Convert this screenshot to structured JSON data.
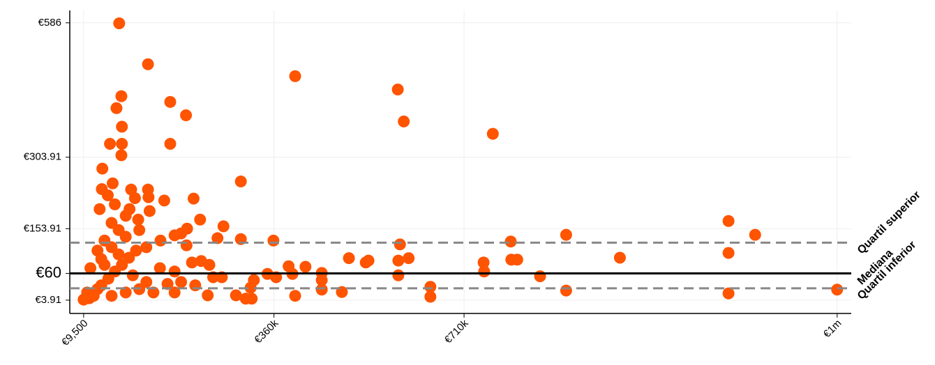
{
  "chart_data": {
    "type": "scatter",
    "color": "#ff5400",
    "grid": true,
    "xlim": [
      -16000,
      1423000
    ],
    "ylim": [
      -24,
      612
    ],
    "xticks": [
      {
        "value": 9500,
        "label": "€9,500"
      },
      {
        "value": 360000,
        "label": "€360k"
      },
      {
        "value": 710000,
        "label": "€710k"
      },
      {
        "value": 1397000,
        "label": "€1m"
      }
    ],
    "yticks": [
      {
        "value": 3.91,
        "label": "€3.91"
      },
      {
        "value": 60,
        "label": "€60"
      },
      {
        "value": 153.91,
        "label": "€153.91"
      },
      {
        "value": 303.91,
        "label": "€303.91"
      },
      {
        "value": 586,
        "label": "€586"
      }
    ],
    "reference_lines": [
      {
        "label": "Quartil superior",
        "value": 124.5,
        "style": "dashed"
      },
      {
        "label": "Mediana",
        "value": 60,
        "style": "solid"
      },
      {
        "label": "Quartil inferior",
        "value": 28.9,
        "style": "dashed"
      }
    ],
    "series": [
      {
        "x": [
          75000,
          128000,
          399000,
          588000,
          599000,
          763000,
          79000,
          70000,
          169000,
          198000,
          80000,
          58000,
          80000,
          169000,
          79000,
          44000,
          299000,
          63000,
          43000,
          97000,
          128000,
          54000,
          104000,
          129000,
          212000,
          158000,
          39000,
          67000,
          94000,
          131000,
          224000,
          110000,
          267000,
          189000,
          200000,
          177000,
          256000,
          299000,
          359000,
          592000,
          796000,
          898000,
          1197000,
          1246000,
          1197000,
          997000,
          498000,
          529000,
          534000,
          589000,
          608000,
          746000,
          747000,
          797000,
          808000,
          850000,
          589000,
          387000,
          418000,
          394000,
          448000,
          448000,
          448000,
          364000,
          348000,
          323000,
          317000,
          290000,
          308000,
          319000,
          399000,
          485000,
          648000,
          648000,
          898000,
          1197000,
          1397000,
          238000,
          264000,
          241000,
          226000,
          209000,
          199000,
          150000,
          177000,
          164000,
          151000,
          125000,
          112000,
          87000,
          61000,
          48000,
          35000,
          22000,
          16000,
          9500,
          20000,
          28000,
          42000,
          55000,
          67000,
          80000,
          93000,
          106000,
          35000,
          61000,
          87000,
          112000,
          138000,
          48000,
          74000,
          100000,
          125000,
          61000,
          87000,
          74000,
          42000,
          189000,
          215000,
          177000,
          248000
        ],
        "values": [
          585,
          499,
          474,
          446,
          379,
          353,
          432,
          407,
          420,
          392,
          368,
          332,
          332,
          332,
          308,
          280,
          253,
          249,
          237,
          236,
          236,
          224,
          218,
          220,
          217,
          213,
          195,
          205,
          195,
          191,
          173,
          173,
          159,
          144,
          154,
          140,
          134,
          132,
          129,
          121,
          127,
          141,
          170,
          141,
          103,
          93,
          92,
          83,
          87,
          87,
          92,
          83,
          64,
          89,
          89,
          54,
          56,
          75,
          74,
          59,
          61,
          46,
          26,
          52,
          59,
          46,
          30,
          14,
          7,
          7,
          13,
          21,
          32,
          11,
          24,
          18,
          26,
          14,
          52,
          78,
          86,
          83,
          119,
          71,
          64,
          38,
          129,
          115,
          151,
          181,
          166,
          129,
          108,
          71,
          20,
          5,
          8,
          13,
          35,
          49,
          64,
          78,
          93,
          108,
          27,
          13,
          20,
          27,
          20,
          78,
          100,
          56,
          42,
          115,
          137,
          151,
          90,
          42,
          35,
          20,
          52
        ]
      }
    ]
  }
}
